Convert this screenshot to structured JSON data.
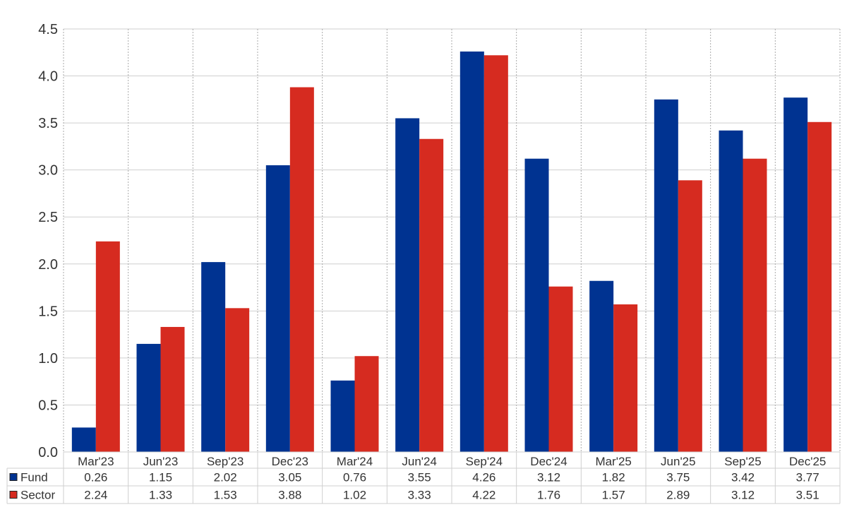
{
  "chart_data": {
    "type": "bar",
    "categories": [
      "Mar'23",
      "Jun'23",
      "Sep'23",
      "Dec'23",
      "Mar'24",
      "Jun'24",
      "Sep'24",
      "Dec'24",
      "Mar'25",
      "Jun'25",
      "Sep'25",
      "Dec'25"
    ],
    "series": [
      {
        "name": "Fund",
        "color": "#003391",
        "values": [
          0.26,
          1.15,
          2.02,
          3.05,
          0.76,
          3.55,
          4.26,
          3.12,
          1.82,
          3.75,
          3.42,
          3.77
        ]
      },
      {
        "name": "Sector",
        "color": "#d62b20",
        "values": [
          2.24,
          1.33,
          1.53,
          3.88,
          1.02,
          3.33,
          4.22,
          1.76,
          1.57,
          2.89,
          3.12,
          3.51
        ]
      }
    ],
    "ylim": [
      0,
      4.5
    ],
    "yticks": [
      "0.0",
      "0.5",
      "1.0",
      "1.5",
      "2.0",
      "2.5",
      "3.0",
      "3.5",
      "4.0",
      "4.5"
    ],
    "grid": true,
    "legend": "data table below chart",
    "table_values": [
      [
        "0.26",
        "1.15",
        "2.02",
        "3.05",
        "0.76",
        "3.55",
        "4.26",
        "3.12",
        "1.82",
        "3.75",
        "3.42",
        "3.77"
      ],
      [
        "2.24",
        "1.33",
        "1.53",
        "3.88",
        "1.02",
        "3.33",
        "4.22",
        "1.76",
        "1.57",
        "2.89",
        "3.12",
        "3.51"
      ]
    ]
  }
}
